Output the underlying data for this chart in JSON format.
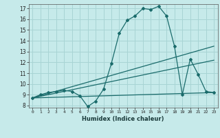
{
  "xlabel": "Humidex (Indice chaleur)",
  "ylabel": "",
  "xlim": [
    -0.5,
    23.5
  ],
  "ylim": [
    7.8,
    17.4
  ],
  "xticks": [
    0,
    1,
    2,
    3,
    4,
    5,
    6,
    7,
    8,
    9,
    10,
    11,
    12,
    13,
    14,
    15,
    16,
    17,
    18,
    19,
    20,
    21,
    22,
    23
  ],
  "yticks": [
    8,
    9,
    10,
    11,
    12,
    13,
    14,
    15,
    16,
    17
  ],
  "background_color": "#c6eaea",
  "grid_color": "#a8d4d4",
  "line_color": "#1a6b6b",
  "lines": [
    {
      "x": [
        0,
        1,
        2,
        3,
        4,
        5,
        6,
        7,
        8,
        9,
        10,
        11,
        12,
        13,
        14,
        15,
        16,
        17,
        18,
        19,
        20,
        21,
        22,
        23
      ],
      "y": [
        8.7,
        9.0,
        9.2,
        9.3,
        9.4,
        9.3,
        8.9,
        7.9,
        8.4,
        9.5,
        11.9,
        14.7,
        15.9,
        16.3,
        17.0,
        16.9,
        17.2,
        16.3,
        13.5,
        9.0,
        12.3,
        10.9,
        9.3,
        9.2
      ]
    },
    {
      "x": [
        0,
        23
      ],
      "y": [
        8.7,
        13.5
      ]
    },
    {
      "x": [
        0,
        23
      ],
      "y": [
        8.7,
        12.2
      ]
    },
    {
      "x": [
        0,
        23
      ],
      "y": [
        8.7,
        9.2
      ]
    }
  ]
}
